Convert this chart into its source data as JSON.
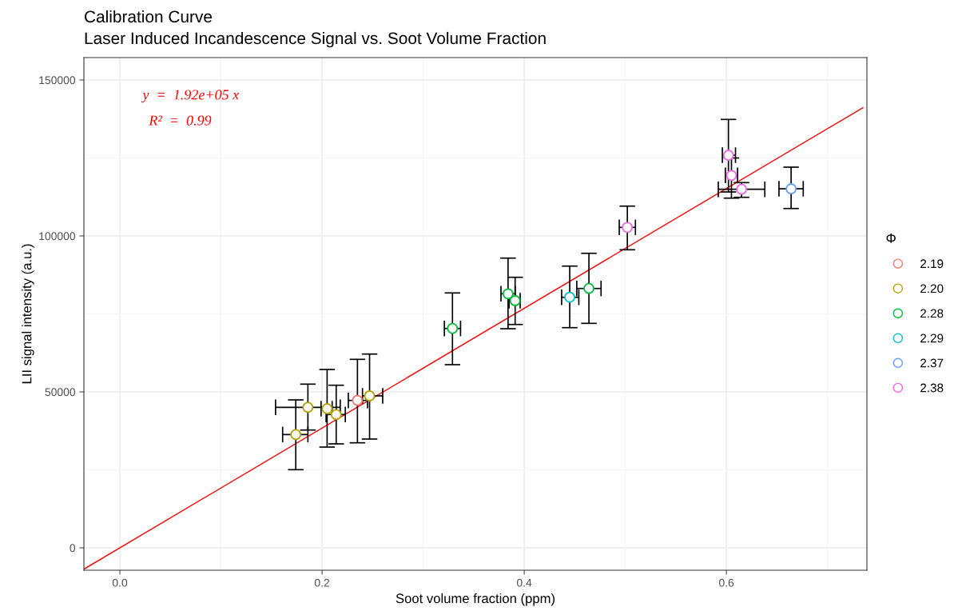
{
  "chart_data": {
    "type": "scatter",
    "title": "Calibration Curve",
    "subtitle": "Laser Induced Incandescence Signal vs. Soot Volume Fraction",
    "xlabel": "Soot volume fraction (ppm)",
    "ylabel": "LII signal intensity (a.u.)",
    "legend_title": "Φ",
    "annotations": [
      "y  =  1.92e+05 x",
      "R²  =  0.99"
    ],
    "xlim": [
      -0.0356,
      0.739
    ],
    "ylim": [
      -7180,
      157180
    ],
    "xticks": [
      {
        "value": 0,
        "label": "0.0"
      },
      {
        "value": 0.2,
        "label": "0.2"
      },
      {
        "value": 0.4,
        "label": "0.4"
      },
      {
        "value": 0.6,
        "label": "0.6"
      }
    ],
    "yticks": [
      0,
      50000,
      100000,
      150000
    ],
    "grid": true,
    "legend": "right",
    "marker": "circle",
    "series": [
      {
        "name": "2.19",
        "color": "#f8766d",
        "x": [
          0.235
        ],
        "values": [
          47260
        ],
        "errors": [
          [
            33670,
            60430
          ]
        ],
        "xerrors": [
          [
            0.226,
            0.245
          ]
        ]
      },
      {
        "name": "2.20",
        "color": "#b79f00",
        "x": [
          0.174,
          0.186,
          0.205,
          0.214,
          0.247
        ],
        "values": [
          36330,
          45050,
          44610,
          42740,
          48720
        ],
        "errors": [
          [
            25050,
            47430
          ],
          [
            37770,
            52480
          ],
          [
            32300,
            57180
          ],
          [
            33330,
            52130
          ],
          [
            34870,
            62130
          ]
        ],
        "xerrors": [
          [
            0.161,
            0.186
          ],
          [
            0.154,
            0.218
          ],
          [
            0.199,
            0.21
          ],
          [
            0.204,
            0.223
          ],
          [
            0.24,
            0.26
          ]
        ]
      },
      {
        "name": "2.28",
        "color": "#00ba38",
        "x": [
          0.329,
          0.384,
          0.391,
          0.464
        ],
        "values": [
          70340,
          81450,
          79230,
          83150
        ],
        "errors": [
          [
            58720,
            81720
          ],
          [
            70250,
            92890
          ],
          [
            71610,
            86740
          ],
          [
            71970,
            94430
          ]
        ],
        "xerrors": [
          [
            0.321,
            0.337
          ],
          [
            0.377,
            0.391
          ],
          [
            0.385,
            0.396
          ],
          [
            0.452,
            0.476
          ]
        ]
      },
      {
        "name": "2.29",
        "color": "#00bfc4",
        "x": [
          0.445
        ],
        "values": [
          80330
        ],
        "errors": [
          [
            70590,
            90330
          ]
        ],
        "xerrors": [
          [
            0.437,
            0.454
          ]
        ]
      },
      {
        "name": "2.37",
        "color": "#619cff",
        "x": [
          0.664
        ],
        "values": [
          115120
        ],
        "errors": [
          [
            108790,
            122050
          ]
        ],
        "xerrors": [
          [
            0.652,
            0.676
          ]
        ]
      },
      {
        "name": "2.38",
        "color": "#f564e3",
        "x": [
          0.502,
          0.602,
          0.605,
          0.615
        ],
        "values": [
          102740,
          125890,
          119400,
          114950
        ],
        "errors": [
          [
            95560,
            109560
          ],
          [
            114100,
            137350
          ],
          [
            112120,
            125000
          ],
          [
            112380,
            117090
          ]
        ],
        "xerrors": [
          [
            0.494,
            0.51
          ],
          [
            0.596,
            0.609
          ],
          [
            0.599,
            0.611
          ],
          [
            0.592,
            0.638
          ]
        ]
      },
      {
        "type": "line",
        "marker": "none",
        "color": "#ff0000",
        "x": [
          -0.035,
          0.735
        ],
        "values": [
          -6720,
          141120
        ]
      }
    ]
  }
}
